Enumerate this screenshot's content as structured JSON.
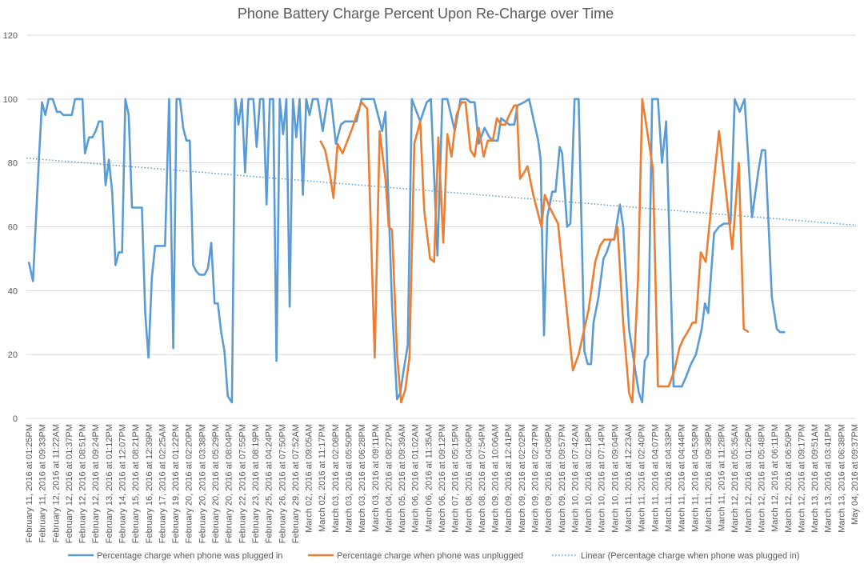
{
  "chart_data": {
    "type": "line",
    "title": "Phone Battery Charge Percent Upon Re-Charge over Time",
    "xlabel": "",
    "ylabel": "",
    "ylim": [
      0,
      120
    ],
    "yticks": [
      0,
      20,
      40,
      60,
      80,
      100,
      120
    ],
    "grid": true,
    "legend_position": "bottom",
    "categories": [
      "February 11, 2016 at 01:25PM",
      "February 11, 2016 at 09:33PM",
      "February 12, 2016 at 11:22AM",
      "February 12, 2016 at 01:37PM",
      "February 12, 2016 at 08:51PM",
      "February 12, 2016 at 09:24PM",
      "February 13, 2016 at 01:12PM",
      "February 14, 2016 at 12:07PM",
      "February 15, 2016 at 08:21PM",
      "February 16, 2016 at 12:39PM",
      "February 17, 2016 at 02:25AM",
      "February 19, 2016 at 01:22PM",
      "February 20, 2016 at 02:20PM",
      "February 20, 2016 at 03:38PM",
      "February 20, 2016 at 05:29PM",
      "February 20, 2016 at 08:04PM",
      "February 22, 2016 at 07:55PM",
      "February 23, 2016 at 08:19PM",
      "February 25, 2016 at 04:24PM",
      "February 26, 2016 at 07:50PM",
      "February 29, 2016 at 07:52AM",
      "March 02, 2016 at 09:05AM",
      "March 02, 2016 at 11:17PM",
      "March 03, 2016 at 02:08PM",
      "March 03, 2016 at 05:50PM",
      "March 03, 2016 at 06:28PM",
      "March 03, 2016 at 09:11PM",
      "March 04, 2016 at 08:27PM",
      "March 05, 2016 at 09:39AM",
      "March 06, 2016 at 01:02AM",
      "March 06, 2016 at 11:35AM",
      "March 06, 2016 at 09:12PM",
      "March 07, 2016 at 05:15PM",
      "March 08, 2016 at 04:06PM",
      "March 08, 2016 at 07:54PM",
      "March 09, 2016 at 10:06AM",
      "March 09, 2016 at 12:41PM",
      "March 09, 2016 at 02:02PM",
      "March 09, 2016 at 02:47PM",
      "March 09, 2016 at 04:08PM",
      "March 09, 2016 at 09:57PM",
      "March 10, 2016 at 07:42AM",
      "March 10, 2016 at 02:18PM",
      "March 10, 2016 at 07:14PM",
      "March 10, 2016 at 09:04PM",
      "March 11, 2016 at 12:23AM",
      "March 11, 2016 at 02:40PM",
      "March 11, 2016 at 04:07PM",
      "March 11, 2016 at 04:33PM",
      "March 11, 2016 at 04:44PM",
      "March 11, 2016 at 04:53PM",
      "March 11, 2016 at 09:38PM",
      "March 11, 2016 at 11:28PM",
      "March 12, 2016 at 05:35AM",
      "March 12, 2016 at 01:26PM",
      "March 12, 2016 at 05:48PM",
      "March 12, 2016 at 06:11PM",
      "March 12, 2016 at 06:50PM",
      "March 12, 2016 at 09:17PM",
      "March 13, 2016 at 09:51AM",
      "March 13, 2016 at 03:41PM",
      "March 13, 2016 at 06:38PM",
      "May 04, 2016 at 09:37PM"
    ],
    "x_axis_note": "x values are fractional positions along the category axis (0 = first label, 1 = last label)",
    "series": [
      {
        "name": "Percentage charge when phone was plugged in",
        "color": "#5b9bd5",
        "points": [
          [
            0.0,
            49
          ],
          [
            0.005,
            43
          ],
          [
            0.012,
            80
          ],
          [
            0.016,
            99
          ],
          [
            0.02,
            95
          ],
          [
            0.024,
            100
          ],
          [
            0.029,
            100
          ],
          [
            0.034,
            96
          ],
          [
            0.038,
            96
          ],
          [
            0.042,
            95
          ],
          [
            0.048,
            95
          ],
          [
            0.052,
            95
          ],
          [
            0.056,
            100
          ],
          [
            0.065,
            100
          ],
          [
            0.068,
            83
          ],
          [
            0.073,
            88
          ],
          [
            0.077,
            88
          ],
          [
            0.081,
            90
          ],
          [
            0.085,
            93
          ],
          [
            0.089,
            93
          ],
          [
            0.093,
            73
          ],
          [
            0.097,
            81
          ],
          [
            0.101,
            71
          ],
          [
            0.105,
            48
          ],
          [
            0.109,
            52
          ],
          [
            0.113,
            52
          ],
          [
            0.117,
            100
          ],
          [
            0.121,
            95
          ],
          [
            0.125,
            66
          ],
          [
            0.13,
            66
          ],
          [
            0.137,
            66
          ],
          [
            0.141,
            33
          ],
          [
            0.145,
            19
          ],
          [
            0.149,
            44
          ],
          [
            0.153,
            54
          ],
          [
            0.158,
            54
          ],
          [
            0.165,
            54
          ],
          [
            0.17,
            100
          ],
          [
            0.175,
            22
          ],
          [
            0.179,
            100
          ],
          [
            0.183,
            100
          ],
          [
            0.187,
            91
          ],
          [
            0.191,
            87
          ],
          [
            0.195,
            87
          ],
          [
            0.199,
            48
          ],
          [
            0.203,
            46
          ],
          [
            0.207,
            45
          ],
          [
            0.213,
            45
          ],
          [
            0.217,
            47
          ],
          [
            0.221,
            55
          ],
          [
            0.225,
            36
          ],
          [
            0.229,
            36
          ],
          [
            0.233,
            27
          ],
          [
            0.237,
            21
          ],
          [
            0.241,
            7
          ],
          [
            0.246,
            5
          ],
          [
            0.25,
            100
          ],
          [
            0.254,
            92
          ],
          [
            0.258,
            100
          ],
          [
            0.262,
            77
          ],
          [
            0.266,
            100
          ],
          [
            0.272,
            100
          ],
          [
            0.276,
            85
          ],
          [
            0.28,
            100
          ],
          [
            0.284,
            100
          ],
          [
            0.288,
            67
          ],
          [
            0.292,
            100
          ],
          [
            0.296,
            100
          ],
          [
            0.3,
            18
          ],
          [
            0.304,
            100
          ],
          [
            0.308,
            89
          ],
          [
            0.312,
            100
          ],
          [
            0.316,
            35
          ],
          [
            0.32,
            100
          ],
          [
            0.324,
            88
          ],
          [
            0.328,
            100
          ],
          [
            0.332,
            70
          ],
          [
            0.336,
            100
          ],
          [
            0.34,
            95
          ],
          [
            0.344,
            100
          ],
          [
            0.35,
            100
          ],
          [
            0.356,
            90
          ],
          [
            0.362,
            100
          ],
          [
            0.366,
            100
          ],
          [
            0.372,
            86
          ],
          [
            0.378,
            92
          ],
          [
            0.383,
            93
          ],
          [
            0.39,
            93
          ],
          [
            0.397,
            93
          ],
          [
            0.403,
            100
          ],
          [
            0.412,
            100
          ],
          [
            0.418,
            100
          ],
          [
            0.428,
            90
          ],
          [
            0.432,
            96
          ],
          [
            0.44,
            35
          ],
          [
            0.446,
            6
          ],
          [
            0.45,
            8
          ],
          [
            0.454,
            15
          ],
          [
            0.459,
            23
          ],
          [
            0.464,
            100
          ],
          [
            0.474,
            93
          ],
          [
            0.482,
            99
          ],
          [
            0.487,
            100
          ],
          [
            0.495,
            51
          ],
          [
            0.501,
            100
          ],
          [
            0.507,
            100
          ],
          [
            0.516,
            90
          ],
          [
            0.523,
            100
          ],
          [
            0.53,
            100
          ],
          [
            0.535,
            99
          ],
          [
            0.54,
            99
          ],
          [
            0.545,
            86
          ],
          [
            0.552,
            91
          ],
          [
            0.558,
            88
          ],
          [
            0.562,
            87
          ],
          [
            0.568,
            87
          ],
          [
            0.572,
            94
          ],
          [
            0.577,
            93
          ],
          [
            0.582,
            92
          ],
          [
            0.588,
            92
          ],
          [
            0.592,
            98
          ],
          [
            0.6,
            99
          ],
          [
            0.606,
            100
          ],
          [
            0.611,
            94
          ],
          [
            0.617,
            87
          ],
          [
            0.62,
            81
          ],
          [
            0.624,
            26
          ],
          [
            0.628,
            63
          ],
          [
            0.634,
            71
          ],
          [
            0.638,
            71
          ],
          [
            0.643,
            85
          ],
          [
            0.646,
            83
          ],
          [
            0.652,
            60
          ],
          [
            0.656,
            61
          ],
          [
            0.661,
            100
          ],
          [
            0.666,
            100
          ],
          [
            0.673,
            21
          ],
          [
            0.677,
            17
          ],
          [
            0.681,
            17
          ],
          [
            0.684,
            30
          ],
          [
            0.69,
            38
          ],
          [
            0.696,
            50
          ],
          [
            0.7,
            52
          ],
          [
            0.705,
            56
          ],
          [
            0.709,
            56
          ],
          [
            0.716,
            67
          ],
          [
            0.72,
            60
          ],
          [
            0.727,
            28
          ],
          [
            0.734,
            16
          ],
          [
            0.739,
            8
          ],
          [
            0.743,
            5
          ],
          [
            0.746,
            18
          ],
          [
            0.75,
            20
          ],
          [
            0.755,
            100
          ],
          [
            0.762,
            100
          ],
          [
            0.767,
            80
          ],
          [
            0.772,
            93
          ],
          [
            0.781,
            10
          ],
          [
            0.786,
            10
          ],
          [
            0.791,
            10
          ],
          [
            0.796,
            13
          ],
          [
            0.802,
            17
          ],
          [
            0.808,
            20
          ],
          [
            0.815,
            28
          ],
          [
            0.819,
            36
          ],
          [
            0.823,
            33
          ],
          [
            0.83,
            58
          ],
          [
            0.836,
            60
          ],
          [
            0.842,
            61
          ],
          [
            0.85,
            61
          ],
          [
            0.855,
            100
          ],
          [
            0.861,
            96
          ],
          [
            0.867,
            100
          ],
          [
            0.876,
            63
          ],
          [
            0.884,
            78
          ],
          [
            0.888,
            84
          ],
          [
            0.892,
            84
          ],
          [
            0.9,
            38
          ],
          [
            0.906,
            28
          ],
          [
            0.91,
            27
          ],
          [
            0.916,
            27
          ]
        ]
      },
      {
        "name": "Percentage charge when phone was unplugged",
        "color": "#ed7d31",
        "points": [
          [
            0.353,
            87
          ],
          [
            0.359,
            84
          ],
          [
            0.365,
            76
          ],
          [
            0.369,
            69
          ],
          [
            0.374,
            86
          ],
          [
            0.38,
            83
          ],
          [
            0.386,
            87
          ],
          [
            0.392,
            91
          ],
          [
            0.397,
            95
          ],
          [
            0.403,
            99
          ],
          [
            0.41,
            97
          ],
          [
            0.419,
            19
          ],
          [
            0.425,
            90
          ],
          [
            0.432,
            75
          ],
          [
            0.436,
            60
          ],
          [
            0.44,
            59
          ],
          [
            0.446,
            20
          ],
          [
            0.451,
            5
          ],
          [
            0.456,
            9
          ],
          [
            0.461,
            19
          ],
          [
            0.467,
            86
          ],
          [
            0.474,
            93
          ],
          [
            0.479,
            65
          ],
          [
            0.486,
            50
          ],
          [
            0.491,
            49
          ],
          [
            0.496,
            88
          ],
          [
            0.502,
            55
          ],
          [
            0.507,
            89
          ],
          [
            0.512,
            82
          ],
          [
            0.518,
            95
          ],
          [
            0.524,
            99
          ],
          [
            0.529,
            99
          ],
          [
            0.535,
            84
          ],
          [
            0.54,
            82
          ],
          [
            0.545,
            91
          ],
          [
            0.551,
            82
          ],
          [
            0.556,
            87
          ],
          [
            0.562,
            87
          ],
          [
            0.567,
            94
          ],
          [
            0.572,
            92
          ],
          [
            0.577,
            92
          ],
          [
            0.582,
            95
          ],
          [
            0.588,
            98
          ],
          [
            0.591,
            98
          ],
          [
            0.595,
            75
          ],
          [
            0.6,
            77
          ],
          [
            0.604,
            79
          ],
          [
            0.611,
            70
          ],
          [
            0.617,
            64
          ],
          [
            0.621,
            60
          ],
          [
            0.625,
            70
          ],
          [
            0.631,
            66
          ],
          [
            0.637,
            63
          ],
          [
            0.641,
            61
          ],
          [
            0.65,
            38
          ],
          [
            0.659,
            15
          ],
          [
            0.666,
            20
          ],
          [
            0.672,
            27
          ],
          [
            0.678,
            34
          ],
          [
            0.686,
            49
          ],
          [
            0.692,
            54
          ],
          [
            0.697,
            56
          ],
          [
            0.703,
            56
          ],
          [
            0.709,
            56
          ],
          [
            0.713,
            60
          ],
          [
            0.72,
            30
          ],
          [
            0.727,
            8
          ],
          [
            0.731,
            5
          ],
          [
            0.738,
            44
          ],
          [
            0.743,
            100
          ],
          [
            0.749,
            90
          ],
          [
            0.756,
            78
          ],
          [
            0.762,
            10
          ],
          [
            0.768,
            10
          ],
          [
            0.775,
            10
          ],
          [
            0.782,
            15
          ],
          [
            0.788,
            22
          ],
          [
            0.793,
            25
          ],
          [
            0.798,
            27
          ],
          [
            0.804,
            30
          ],
          [
            0.808,
            30
          ],
          [
            0.814,
            52
          ],
          [
            0.82,
            49
          ],
          [
            0.828,
            70
          ],
          [
            0.836,
            90
          ],
          [
            0.844,
            72
          ],
          [
            0.852,
            53
          ],
          [
            0.86,
            80
          ],
          [
            0.866,
            28
          ],
          [
            0.872,
            27
          ]
        ]
      }
    ],
    "trendline": {
      "name": "Linear (Percentage charge when phone was plugged in)",
      "type": "linear",
      "color": "#5b9bd5",
      "style": "dotted",
      "start_value": 81.5,
      "end_value": 60.5
    },
    "legend": [
      "Percentage charge when phone was plugged in",
      "Percentage charge when phone was unplugged",
      "Linear (Percentage charge when phone was plugged in)"
    ]
  }
}
